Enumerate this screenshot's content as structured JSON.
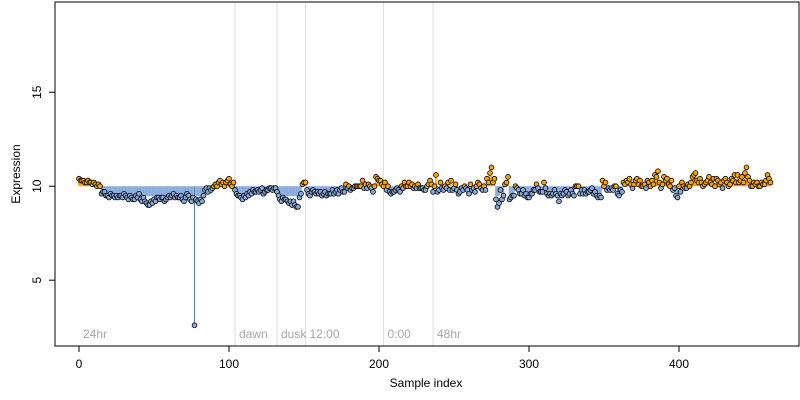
{
  "chart_data": {
    "type": "scatter",
    "title": "",
    "xlabel": "Sample index",
    "ylabel": "Expression",
    "xlim": [
      -16,
      480
    ],
    "ylim": [
      1.5,
      19.8
    ],
    "baseline": 10,
    "x_ticks": [
      0,
      100,
      200,
      300,
      400
    ],
    "y_ticks": [
      5,
      10,
      15
    ],
    "grid": false,
    "phase_markers": [
      {
        "label": "24hr",
        "x": 0
      },
      {
        "label": "dawn",
        "x": 104
      },
      {
        "label": "dusk",
        "x": 132
      },
      {
        "label": "12:00",
        "x": 151
      },
      {
        "label": "0:00",
        "x": 203
      },
      {
        "label": "48hr",
        "x": 236
      }
    ],
    "colors": {
      "above": "#ffa500",
      "below": "#87aadb",
      "outlier_stem": "#4a8a8a",
      "point_edge": "#000000",
      "divider": "#dddddd"
    },
    "series": [
      {
        "values": [
          10.4,
          10.3,
          10.3,
          10.3,
          10.2,
          10.2,
          10.3,
          10.2,
          10.2,
          10.1,
          10.2,
          10.1,
          10.0,
          10.1,
          10.0,
          9.6,
          9.7,
          9.7,
          9.5,
          9.5,
          9.4,
          9.6,
          9.5,
          9.5,
          9.4,
          9.5,
          9.4,
          9.5,
          9.5,
          9.4,
          9.6,
          9.5,
          9.4,
          9.3,
          9.5,
          9.4,
          9.3,
          9.3,
          9.5,
          9.4,
          9.6,
          9.3,
          9.2,
          9.4,
          9.2,
          9.1,
          9.0,
          9.0,
          9.2,
          9.1,
          9.3,
          9.2,
          9.4,
          9.4,
          9.3,
          9.4,
          9.4,
          9.2,
          9.3,
          9.4,
          9.5,
          9.4,
          9.5,
          9.6,
          9.4,
          9.5,
          9.4,
          9.4,
          9.5,
          9.3,
          9.2,
          9.4,
          9.6,
          9.5,
          9.3,
          9.2,
          9.4,
          2.6,
          9.3,
          9.2,
          9.1,
          9.3,
          9.2,
          9.5,
          9.8,
          9.9,
          9.7,
          9.9,
          9.8,
          9.9,
          10.0,
          10.1,
          10.0,
          10.2,
          10.3,
          10.1,
          10.2,
          10.0,
          10.2,
          10.3,
          10.4,
          10.1,
          10.0,
          10.2,
          9.8,
          9.6,
          9.5,
          9.5,
          9.4,
          9.3,
          9.5,
          9.4,
          9.6,
          9.5,
          9.7,
          9.6,
          9.8,
          9.7,
          9.7,
          9.8,
          9.7,
          9.8,
          9.9,
          9.6,
          9.7,
          9.8,
          9.8,
          9.9,
          9.9,
          9.8,
          9.9,
          9.9,
          9.7,
          9.5,
          9.3,
          9.2,
          9.4,
          9.3,
          9.3,
          9.2,
          9.1,
          9.2,
          9.0,
          9.2,
          9.0,
          8.9,
          8.9,
          9.4,
          9.6,
          10.1,
          10.2,
          10.2,
          9.8,
          9.6,
          9.5,
          9.7,
          9.8,
          9.7,
          9.6,
          9.7,
          9.6,
          9.7,
          9.5,
          9.6,
          9.7,
          9.5,
          9.6,
          9.6,
          9.6,
          9.8,
          9.6,
          9.7,
          9.8,
          9.6,
          9.8,
          9.9,
          9.7,
          9.7,
          10.1,
          9.9,
          10.0,
          9.8,
          9.9,
          9.9,
          10.0,
          10.0,
          10.0,
          10.0,
          10.0,
          10.3,
          9.9,
          10.1,
          9.9,
          10.1,
          10.0,
          9.9,
          9.7,
          10.0,
          10.5,
          10.4,
          10.3,
          10.3,
          10.1,
          10.0,
          10.2,
          9.8,
          10.0,
          9.7,
          9.6,
          9.7,
          9.7,
          9.8,
          9.9,
          9.8,
          9.7,
          10.0,
          9.9,
          10.2,
          10.0,
          10.0,
          10.2,
          10.0,
          10.1,
          9.9,
          10.0,
          9.9,
          10.1,
          9.9,
          9.9,
          9.9,
          9.8,
          9.8,
          10.0,
          10.1,
          10.3,
          10.1,
          9.7,
          10.0,
          10.6,
          9.7,
          9.8,
          10.2,
          9.9,
          9.8,
          10.0,
          9.9,
          10.2,
          9.8,
          10.3,
          9.8,
          9.9,
          10.1,
          9.8,
          9.6,
          9.7,
          9.9,
          9.8,
          10.0,
          9.9,
          9.8,
          9.6,
          10.1,
          9.8,
          9.9,
          9.7,
          10.0,
          10.2,
          10.1,
          9.9,
          9.8,
          10.0,
          9.8,
          10.4,
          10.2,
          10.7,
          11.0,
          10.2,
          10.4,
          9.3,
          8.9,
          9.1,
          9.8,
          9.3,
          9.5,
          10.1,
          10.2,
          10.5,
          9.3,
          9.4,
          9.5,
          9.5,
          10.0,
          9.9,
          9.8,
          9.6,
          9.6,
          9.8,
          9.5,
          9.6,
          9.4,
          9.4,
          9.6,
          9.6,
          9.8,
          9.8,
          10.1,
          9.9,
          9.7,
          9.7,
          9.7,
          10.2,
          9.9,
          9.6,
          9.5,
          9.6,
          9.5,
          9.6,
          9.8,
          9.6,
          9.5,
          9.2,
          9.6,
          9.5,
          9.6,
          9.8,
          9.7,
          9.5,
          9.6,
          9.8,
          9.6,
          9.5,
          10.0,
          10.0,
          10.0,
          9.6,
          9.8,
          9.6,
          9.8,
          9.6,
          9.7,
          9.7,
          9.8,
          9.9,
          9.6,
          9.7,
          9.5,
          9.4,
          9.5,
          9.4,
          10.3,
          10.0,
          10.2,
          9.8,
          9.9,
          9.8,
          9.9,
          9.8,
          10.0,
          10.0,
          9.6,
          9.5,
          9.8,
          9.7,
          10.2,
          10.1,
          10.3,
          10.2,
          10.4,
          10.1,
          9.9,
          10.1,
          10.3,
          10.4,
          10.1,
          10.3,
          10.0,
          10.0,
          10.1,
          9.9,
          10.3,
          10.2,
          10.0,
          10.3,
          10.1,
          10.6,
          10.5,
          10.8,
          10.2,
          9.9,
          10.1,
          10.5,
          10.3,
          10.4,
          10.1,
          10.0,
          10.3,
          9.8,
          9.9,
          9.5,
          9.4,
          10.0,
          9.7,
          10.2,
          10.0,
          9.9,
          9.9,
          10.1,
          10.0,
          10.2,
          10.5,
          10.6,
          10.7,
          10.3,
          10.2,
          10.4,
          10.2,
          10.0,
          10.1,
          10.2,
          10.3,
          10.5,
          10.2,
          10.1,
          10.4,
          10.0,
          10.4,
          10.3,
          10.1,
          10.2,
          9.9,
          10.3,
          10.4,
          10.2,
          10.0,
          10.1,
          10.4,
          10.3,
          10.6,
          10.2,
          10.6,
          10.2,
          10.3,
          10.5,
          10.2,
          10.7,
          11.0,
          10.5,
          10.3,
          10.0,
          10.0,
          10.2,
          10.1,
          10.2,
          10.0,
          10.0,
          10.2,
          10.1,
          10.1,
          10.3,
          10.6,
          10.4,
          10.2
        ]
      }
    ]
  }
}
